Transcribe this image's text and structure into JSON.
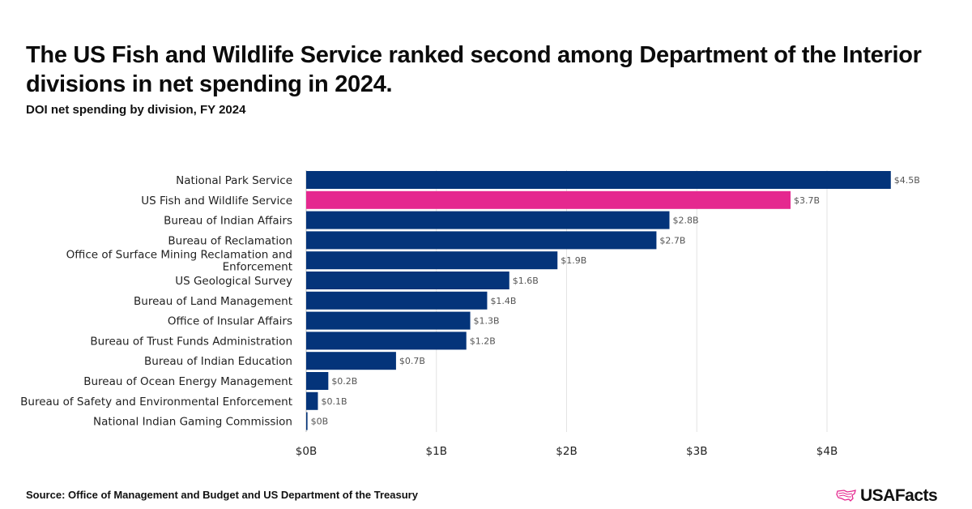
{
  "title": "The US Fish and Wildlife Service ranked second among Department of the Interior divisions in net spending in 2024.",
  "subtitle": "DOI net spending by division, FY 2024",
  "source": "Source: Office of Management and Budget and US Department of the Treasury",
  "logo": {
    "text": "USAFacts",
    "icon": "us-map-outline-icon"
  },
  "colors": {
    "default_bar": "#04347a",
    "highlight_bar": "#e5288f"
  },
  "chart_data": {
    "type": "bar",
    "orientation": "horizontal",
    "title": "The US Fish and Wildlife Service ranked second among Department of the Interior divisions in net spending in 2024.",
    "subtitle": "DOI net spending by division, FY 2024",
    "xlabel": "",
    "ylabel": "",
    "xlim": [
      0,
      4.5
    ],
    "grid": true,
    "x_ticks": [
      0,
      1,
      2,
      3,
      4
    ],
    "x_tick_labels": [
      "$0B",
      "$1B",
      "$2B",
      "$3B",
      "$4B"
    ],
    "categories": [
      [
        "National Park Service"
      ],
      [
        "US Fish and Wildlife Service"
      ],
      [
        "Bureau of Indian Affairs"
      ],
      [
        "Bureau of Reclamation"
      ],
      [
        "Office of Surface Mining Reclamation and",
        "Enforcement"
      ],
      [
        "US Geological Survey"
      ],
      [
        "Bureau of Land Management"
      ],
      [
        "Office of Insular Affairs"
      ],
      [
        "Bureau of Trust Funds Administration"
      ],
      [
        "Bureau of Indian Education"
      ],
      [
        "Bureau of Ocean Energy Management"
      ],
      [
        "Bureau of Safety and Environmental Enforcement"
      ],
      [
        "National Indian Gaming Commission"
      ]
    ],
    "values": [
      4.49,
      3.72,
      2.79,
      2.69,
      1.93,
      1.56,
      1.39,
      1.26,
      1.23,
      0.69,
      0.17,
      0.09,
      0.01
    ],
    "data_labels": [
      "$4.5B",
      "$3.7B",
      "$2.8B",
      "$2.7B",
      "$1.9B",
      "$1.6B",
      "$1.4B",
      "$1.3B",
      "$1.2B",
      "$0.7B",
      "$0.2B",
      "$0.1B",
      "$0B"
    ],
    "highlight_index": 1,
    "unit": "billions of dollars"
  }
}
